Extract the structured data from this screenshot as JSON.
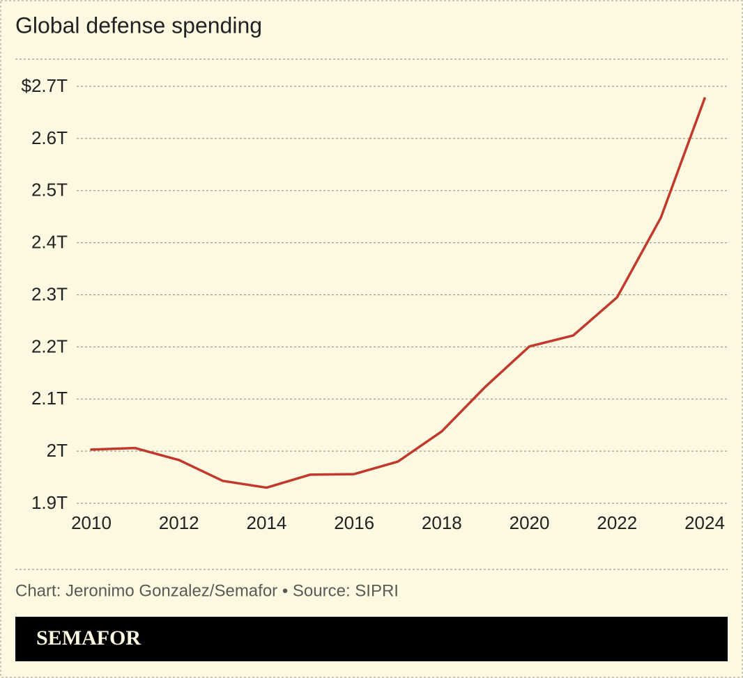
{
  "chart_data": {
    "type": "line",
    "title": "Global defense spending",
    "x": [
      2010,
      2011,
      2012,
      2013,
      2014,
      2015,
      2016,
      2017,
      2018,
      2019,
      2020,
      2021,
      2022,
      2023,
      2024
    ],
    "values": [
      2.003,
      2.006,
      1.983,
      1.943,
      1.93,
      1.955,
      1.956,
      1.98,
      2.038,
      2.124,
      2.201,
      2.222,
      2.295,
      2.448,
      2.677
    ],
    "color": "#c0392b",
    "xlim": [
      2010,
      2024
    ],
    "xticks": [
      2010,
      2012,
      2014,
      2016,
      2018,
      2020,
      2022,
      2024
    ],
    "ylim": [
      1.9,
      2.7
    ],
    "yticks": [
      {
        "value": 1.9,
        "label": "1.9T"
      },
      {
        "value": 2.0,
        "label": "2T"
      },
      {
        "value": 2.1,
        "label": "2.1T"
      },
      {
        "value": 2.2,
        "label": "2.2T"
      },
      {
        "value": 2.3,
        "label": "2.3T"
      },
      {
        "value": 2.4,
        "label": "2.4T"
      },
      {
        "value": 2.5,
        "label": "2.5T"
      },
      {
        "value": 2.6,
        "label": "2.6T"
      },
      {
        "value": 2.7,
        "label": "$2.7T"
      }
    ],
    "grid": true,
    "source": "Chart: Jeronimo Gonzalez/Semafor • Source: SIPRI",
    "brand": "SEMAFOR"
  }
}
